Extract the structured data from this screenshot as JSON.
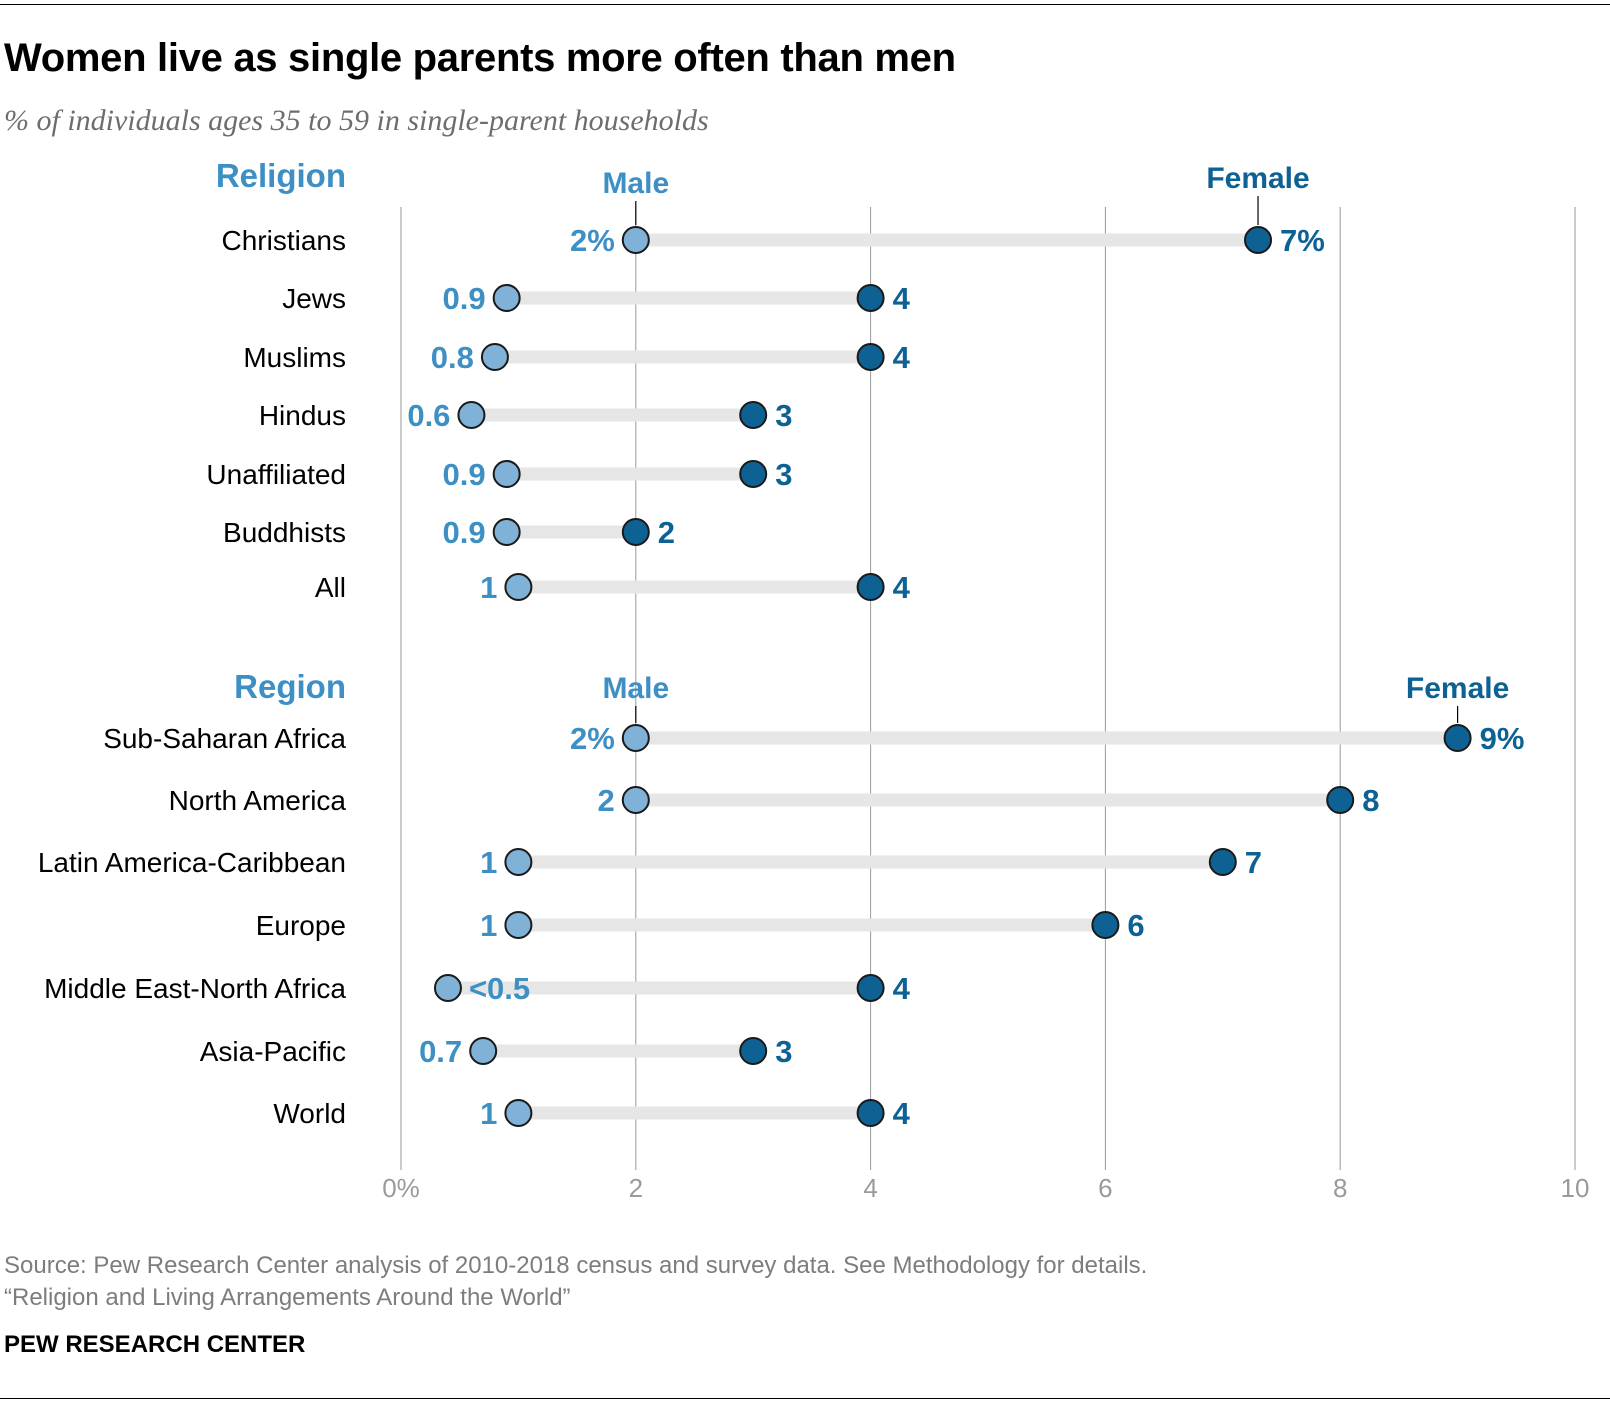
{
  "title": "Women live as single parents more often than men",
  "subtitle": "% of individuals ages 35 to 59 in single-parent households",
  "source_line1": "Source: Pew Research Center analysis of 2010-2018 census and survey data. See Methodology for details.",
  "source_line2": "“Religion and Living Arrangements Around the World”",
  "brand": "PEW RESEARCH CENTER",
  "colors": {
    "male": "#7fb2d6",
    "female": "#0e6293",
    "male_text": "#3d8fc4",
    "female_text": "#0e6293",
    "track": "#e6e6e6",
    "grid": "#9a9a9a",
    "axis_text": "#9a9a9a"
  },
  "chart_data": {
    "type": "dot",
    "xlim": [
      0,
      10
    ],
    "x_ticks": [
      0,
      2,
      4,
      6,
      8,
      10
    ],
    "x_tick_labels": [
      "0%",
      "2",
      "4",
      "6",
      "8",
      "10"
    ],
    "grid": true,
    "series_names": [
      "Male",
      "Female"
    ],
    "groups": [
      {
        "heading": "Religion",
        "male_label": "Male",
        "female_label": "Female",
        "rows": [
          {
            "category": "Christians",
            "male": 2,
            "female": 7.3,
            "male_label": "2%",
            "female_label": "7%"
          },
          {
            "category": "Jews",
            "male": 0.9,
            "female": 4,
            "male_label": "0.9",
            "female_label": "4"
          },
          {
            "category": "Muslims",
            "male": 0.8,
            "female": 4,
            "male_label": "0.8",
            "female_label": "4"
          },
          {
            "category": "Hindus",
            "male": 0.6,
            "female": 3,
            "male_label": "0.6",
            "female_label": "3"
          },
          {
            "category": "Unaffiliated",
            "male": 0.9,
            "female": 3,
            "male_label": "0.9",
            "female_label": "3"
          },
          {
            "category": "Buddhists",
            "male": 0.9,
            "female": 2,
            "male_label": "0.9",
            "female_label": "2"
          },
          {
            "category": "All",
            "male": 1,
            "female": 4,
            "male_label": "1",
            "female_label": "4"
          }
        ]
      },
      {
        "heading": "Region",
        "male_label": "Male",
        "female_label": "Female",
        "rows": [
          {
            "category": "Sub-Saharan Africa",
            "male": 2,
            "female": 9,
            "male_label": "2%",
            "female_label": "9%"
          },
          {
            "category": "North America",
            "male": 2,
            "female": 8,
            "male_label": "2",
            "female_label": "8"
          },
          {
            "category": "Latin America-Caribbean",
            "male": 1,
            "female": 7,
            "male_label": "1",
            "female_label": "7"
          },
          {
            "category": "Europe",
            "male": 1,
            "female": 6,
            "male_label": "1",
            "female_label": "6"
          },
          {
            "category": "Middle East-North Africa",
            "male": 0.4,
            "female": 4,
            "male_label": "<0.5",
            "female_label": "4"
          },
          {
            "category": "Asia-Pacific",
            "male": 0.7,
            "female": 3,
            "male_label": "0.7",
            "female_label": "3"
          },
          {
            "category": "World",
            "male": 1,
            "female": 4,
            "male_label": "1",
            "female_label": "4"
          }
        ]
      }
    ]
  }
}
